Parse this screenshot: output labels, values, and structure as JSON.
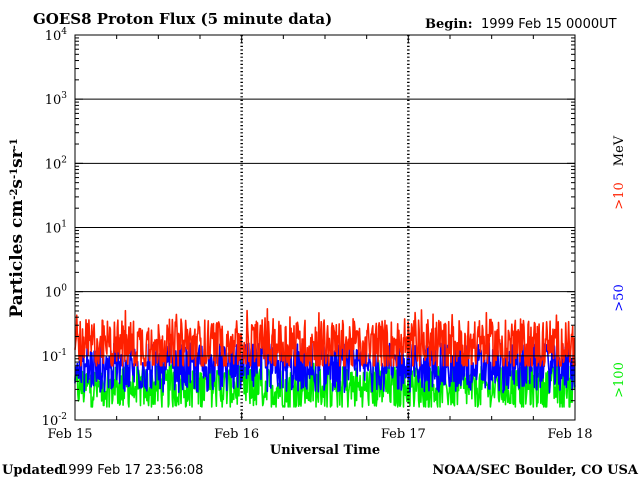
{
  "header": {
    "title": "GOES8 Proton Flux (5 minute data)",
    "begin_label": "Begin:",
    "begin_value": "1999 Feb 15 0000UT"
  },
  "footer": {
    "updated_label": "Updated",
    "updated_value": "1999 Feb 17 23:56:08",
    "credit": "NOAA/SEC Boulder, CO USA"
  },
  "chart_data": {
    "type": "line",
    "title": "GOES8 Proton Flux (5 minute data)",
    "xlabel": "Universal Time",
    "ylabel": "Particles cm⁻²s⁻¹sr⁻¹",
    "y_scale": "log",
    "ylim": [
      0.01,
      10000
    ],
    "x_range": [
      "1999-02-15T00:00",
      "1999-02-18T00:00"
    ],
    "x_ticks": [
      {
        "day": 0,
        "label": "Feb 15"
      },
      {
        "day": 1,
        "label": "Feb 16"
      },
      {
        "day": 2,
        "label": "Feb 17"
      },
      {
        "day": 3,
        "label": "Feb 18"
      }
    ],
    "y_ticks": [
      {
        "exp": -2,
        "value": 0.01
      },
      {
        "exp": -1,
        "value": 0.1
      },
      {
        "exp": 0,
        "value": 1
      },
      {
        "exp": 1,
        "value": 10
      },
      {
        "exp": 2,
        "value": 100
      },
      {
        "exp": 3,
        "value": 1000
      },
      {
        "exp": 4,
        "value": 10000
      }
    ],
    "grid": true,
    "legend_placement": "right",
    "legend_unit": "MeV",
    "series": [
      {
        "name": ">10",
        "color": "#ff2000",
        "median": 0.15,
        "min": 0.07,
        "max": 0.55
      },
      {
        "name": ">50",
        "color": "#0000ff",
        "median": 0.065,
        "min": 0.025,
        "max": 0.18
      },
      {
        "name": ">100",
        "color": "#00ee00",
        "median": 0.032,
        "min": 0.016,
        "max": 0.09
      }
    ]
  }
}
